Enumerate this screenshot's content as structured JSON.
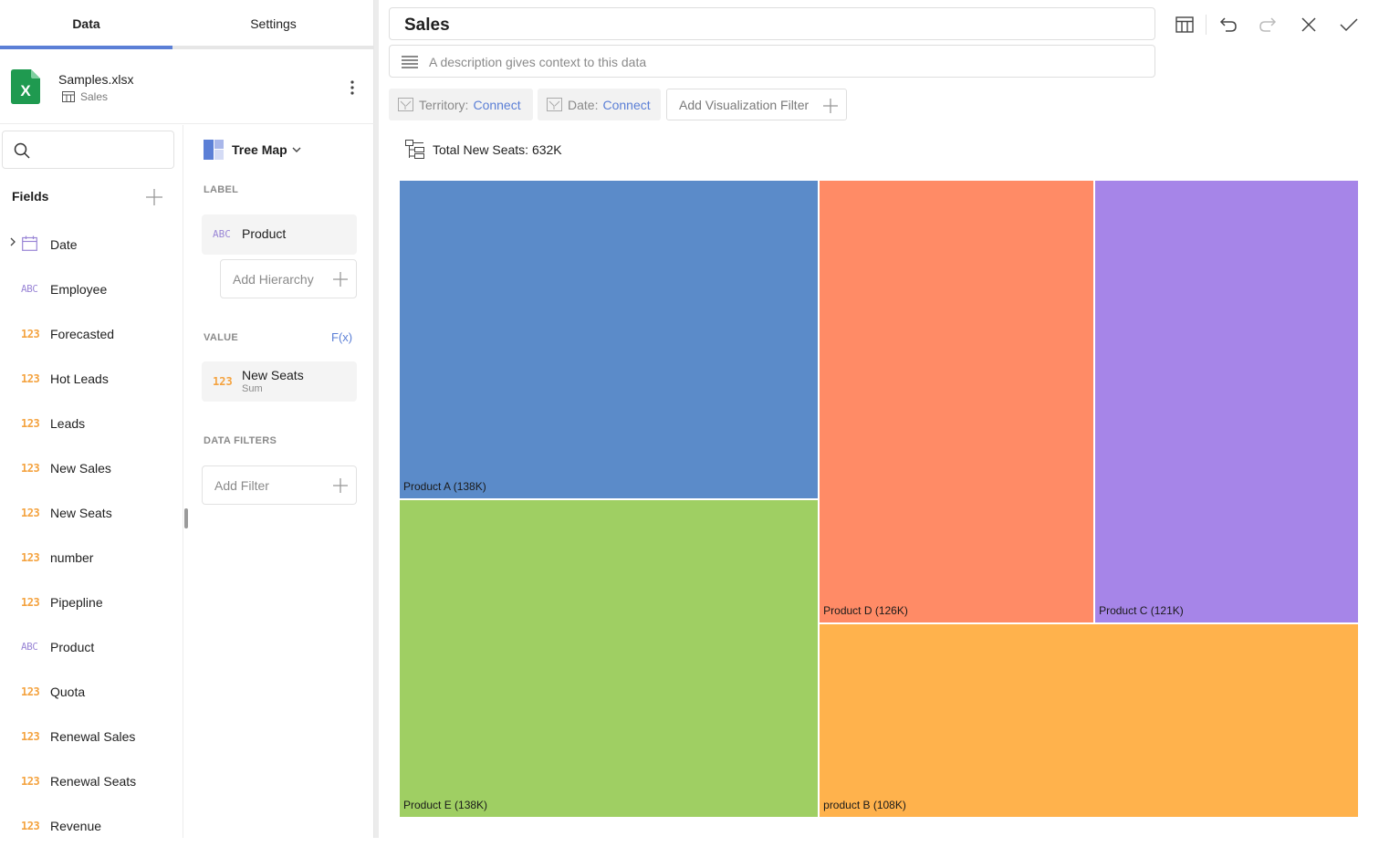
{
  "tabs": {
    "data": "Data",
    "settings": "Settings"
  },
  "source": {
    "name": "Samples.xlsx",
    "sheet": "Sales",
    "icon": "excel-icon"
  },
  "fields": {
    "title": "Fields",
    "items": [
      {
        "type": "",
        "name": "Date",
        "kind": "date"
      },
      {
        "type": "ABC",
        "name": "Employee",
        "kind": "abc"
      },
      {
        "type": "123",
        "name": "Forecasted",
        "kind": "num"
      },
      {
        "type": "123",
        "name": "Hot Leads",
        "kind": "num"
      },
      {
        "type": "123",
        "name": "Leads",
        "kind": "num"
      },
      {
        "type": "123",
        "name": "New Sales",
        "kind": "num"
      },
      {
        "type": "123",
        "name": "New Seats",
        "kind": "num"
      },
      {
        "type": "123",
        "name": "number",
        "kind": "num"
      },
      {
        "type": "123",
        "name": "Pipepline",
        "kind": "num"
      },
      {
        "type": "ABC",
        "name": "Product",
        "kind": "abc"
      },
      {
        "type": "123",
        "name": "Quota",
        "kind": "num"
      },
      {
        "type": "123",
        "name": "Renewal Sales",
        "kind": "num"
      },
      {
        "type": "123",
        "name": "Renewal Seats",
        "kind": "num"
      },
      {
        "type": "123",
        "name": "Revenue",
        "kind": "num"
      }
    ]
  },
  "config": {
    "viz_type": "Tree Map",
    "label_section": "LABEL",
    "label_field": {
      "type": "ABC",
      "name": "Product"
    },
    "add_hierarchy": "Add Hierarchy",
    "value_section": "VALUE",
    "fx": "F(x)",
    "value_field": {
      "type": "123",
      "name": "New Seats",
      "agg": "Sum"
    },
    "filters_section": "DATA FILTERS",
    "add_filter": "Add Filter"
  },
  "header": {
    "title": "Sales",
    "description_placeholder": "A description gives context to this data"
  },
  "filters": [
    {
      "key": "Territory:",
      "value": "Connect"
    },
    {
      "key": "Date:",
      "value": "Connect"
    }
  ],
  "add_viz_filter": "Add Visualization Filter",
  "total_label": "Total New Seats: 632K",
  "colors": {
    "accent": "#5b7fd6",
    "num": "#f4a340",
    "abc": "#9a86d6"
  },
  "chart_data": {
    "type": "treemap",
    "title": "Total New Seats: 632K",
    "items": [
      {
        "label": "Product A (138K)",
        "name": "Product A",
        "value": 138,
        "color": "#5b8bc9"
      },
      {
        "label": "Product E (138K)",
        "name": "Product E",
        "value": 138,
        "color": "#9fcf63"
      },
      {
        "label": "Product D (126K)",
        "name": "Product D",
        "value": 126,
        "color": "#ff8b66"
      },
      {
        "label": "Product C (121K)",
        "name": "Product C",
        "value": 121,
        "color": "#a685e8"
      },
      {
        "label": "product B (108K)",
        "name": "product B",
        "value": 108,
        "color": "#ffb24c"
      }
    ],
    "unit": "K"
  }
}
